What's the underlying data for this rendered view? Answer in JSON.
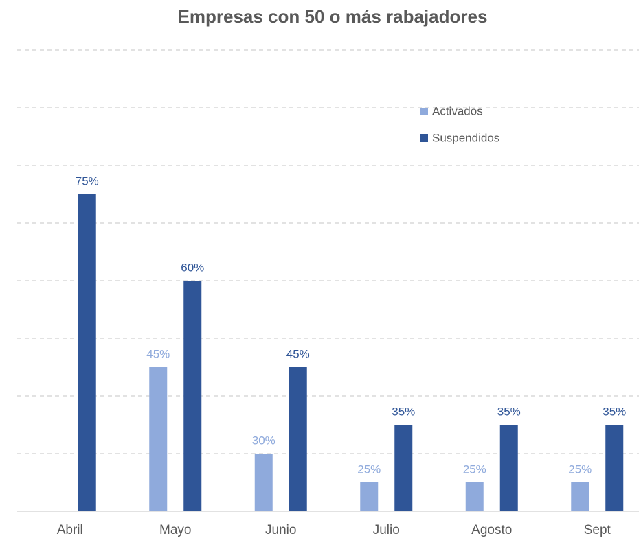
{
  "chart_data": {
    "type": "bar",
    "title": "Empresas con 50 o más rabajadores",
    "categories": [
      "Abril",
      "Mayo",
      "Junio",
      "Julio",
      "Agosto",
      "Sept"
    ],
    "series": [
      {
        "name": "Activados",
        "color": "#8faadc",
        "values": [
          null,
          45,
          30,
          25,
          25,
          25
        ],
        "value_labels": [
          null,
          "45%",
          "30%",
          "25%",
          "25%",
          "25%"
        ]
      },
      {
        "name": "Suspendidos",
        "color": "#2f5597",
        "values": [
          75,
          60,
          45,
          35,
          35,
          35
        ],
        "value_labels": [
          "75%",
          "60%",
          "45%",
          "35%",
          "35%",
          "35%"
        ]
      }
    ],
    "ylim": [
      20,
      100
    ],
    "yticks": [
      20,
      30,
      40,
      50,
      60,
      70,
      80,
      90,
      100
    ],
    "grid": true,
    "legend": "upper right"
  }
}
